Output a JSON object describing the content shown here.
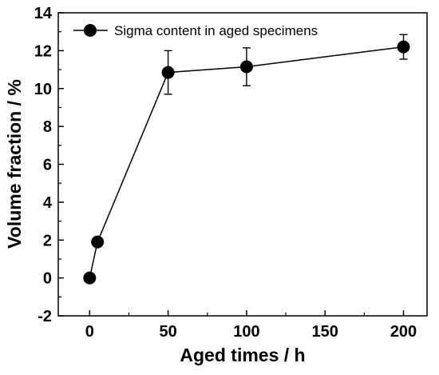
{
  "chart_data": {
    "type": "line",
    "xlabel": "Aged times / h",
    "ylabel": "Volume fraction / %",
    "xlim": [
      -20,
      215
    ],
    "ylim": [
      -2,
      14
    ],
    "xticks": [
      0,
      50,
      100,
      150,
      200
    ],
    "yticks": [
      -2,
      0,
      2,
      4,
      6,
      8,
      10,
      12,
      14
    ],
    "legend_position": "top-left",
    "grid": false,
    "series": [
      {
        "name": "Sigma content in aged specimens",
        "color": "#000000",
        "marker": "circle",
        "x": [
          0,
          5,
          50,
          100,
          200
        ],
        "y": [
          0,
          1.9,
          10.85,
          11.15,
          12.2
        ],
        "error": [
          0,
          0,
          1.15,
          1.0,
          0.65
        ]
      }
    ]
  }
}
